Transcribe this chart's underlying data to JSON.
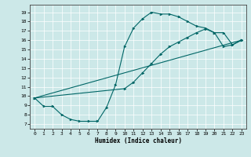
{
  "xlabel": "Humidex (Indice chaleur)",
  "xlim": [
    -0.5,
    23.5
  ],
  "ylim": [
    6.5,
    19.8
  ],
  "xticks": [
    0,
    1,
    2,
    3,
    4,
    5,
    6,
    7,
    8,
    9,
    10,
    11,
    12,
    13,
    14,
    15,
    16,
    17,
    18,
    19,
    20,
    21,
    22,
    23
  ],
  "yticks": [
    7,
    8,
    9,
    10,
    11,
    12,
    13,
    14,
    15,
    16,
    17,
    18,
    19
  ],
  "bg_color": "#cce8e8",
  "line_color": "#006666",
  "line1_x": [
    0,
    1,
    2,
    3,
    4,
    5,
    6,
    7,
    8,
    9,
    10,
    11,
    12,
    13,
    14,
    15,
    16,
    17,
    18,
    19,
    20,
    21,
    22,
    23
  ],
  "line1_y": [
    9.8,
    8.9,
    8.9,
    8.0,
    7.5,
    7.3,
    7.3,
    7.3,
    8.8,
    11.2,
    15.3,
    17.3,
    18.3,
    19.0,
    18.8,
    18.8,
    18.5,
    18.0,
    17.5,
    17.3,
    16.8,
    15.3,
    15.5,
    16.0
  ],
  "line2_x": [
    0,
    23
  ],
  "line2_y": [
    9.8,
    16.0
  ],
  "line3_x": [
    0,
    10,
    11,
    12,
    13,
    14,
    15,
    16,
    17,
    18,
    19,
    20,
    21,
    22,
    23
  ],
  "line3_y": [
    9.8,
    10.8,
    11.5,
    12.5,
    13.5,
    14.5,
    15.3,
    15.8,
    16.3,
    16.8,
    17.2,
    16.8,
    16.8,
    15.5,
    16.0
  ]
}
